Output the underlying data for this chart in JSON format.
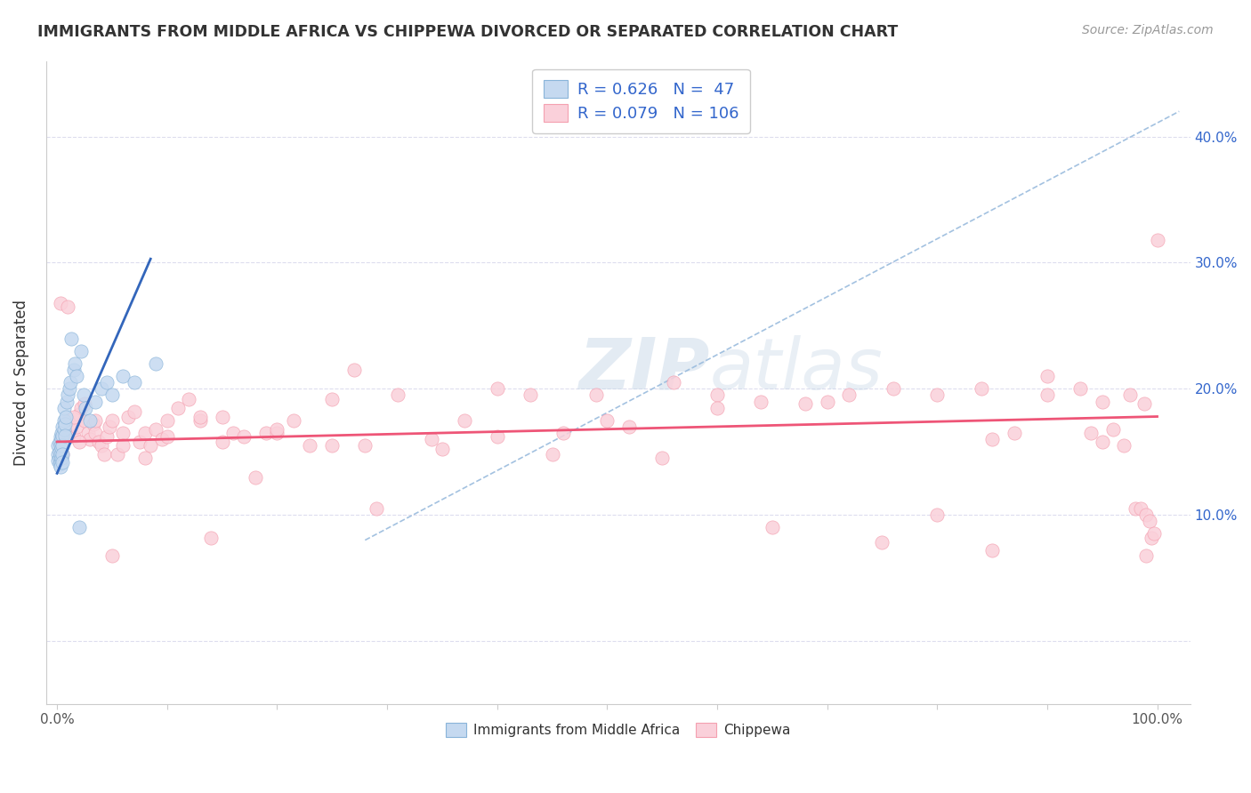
{
  "title": "IMMIGRANTS FROM MIDDLE AFRICA VS CHIPPEWA DIVORCED OR SEPARATED CORRELATION CHART",
  "source": "Source: ZipAtlas.com",
  "ylabel": "Divorced or Separated",
  "legend1_r": "0.626",
  "legend1_n": " 47",
  "legend2_r": "0.079",
  "legend2_n": "106",
  "blue_color": "#89B4D9",
  "pink_color": "#F4A0B0",
  "blue_fill": "#C5D9F0",
  "pink_fill": "#FAD0DA",
  "blue_line_color": "#3366BB",
  "pink_line_color": "#EE5577",
  "dashed_line_color": "#99BBDD",
  "label_color": "#3366CC",
  "text_color": "#333333",
  "grid_color": "#DDDDEE",
  "watermark_color": "#C8D8E8",
  "blue_scatter_x": [
    0.001,
    0.001,
    0.001,
    0.002,
    0.002,
    0.002,
    0.002,
    0.003,
    0.003,
    0.003,
    0.003,
    0.003,
    0.004,
    0.004,
    0.004,
    0.004,
    0.005,
    0.005,
    0.005,
    0.005,
    0.005,
    0.006,
    0.006,
    0.006,
    0.007,
    0.007,
    0.008,
    0.009,
    0.01,
    0.011,
    0.012,
    0.013,
    0.015,
    0.016,
    0.018,
    0.02,
    0.022,
    0.024,
    0.026,
    0.03,
    0.035,
    0.04,
    0.045,
    0.05,
    0.06,
    0.07,
    0.09
  ],
  "blue_scatter_y": [
    0.155,
    0.148,
    0.143,
    0.158,
    0.15,
    0.145,
    0.14,
    0.162,
    0.155,
    0.148,
    0.142,
    0.138,
    0.165,
    0.16,
    0.153,
    0.145,
    0.17,
    0.163,
    0.155,
    0.148,
    0.142,
    0.168,
    0.175,
    0.185,
    0.172,
    0.163,
    0.178,
    0.19,
    0.195,
    0.2,
    0.205,
    0.24,
    0.215,
    0.22,
    0.21,
    0.09,
    0.23,
    0.195,
    0.185,
    0.175,
    0.19,
    0.2,
    0.205,
    0.195,
    0.21,
    0.205,
    0.22
  ],
  "pink_scatter_x": [
    0.003,
    0.005,
    0.008,
    0.01,
    0.012,
    0.015,
    0.018,
    0.02,
    0.022,
    0.025,
    0.028,
    0.03,
    0.033,
    0.035,
    0.038,
    0.04,
    0.043,
    0.045,
    0.048,
    0.05,
    0.055,
    0.06,
    0.065,
    0.07,
    0.075,
    0.08,
    0.085,
    0.09,
    0.095,
    0.1,
    0.11,
    0.12,
    0.13,
    0.14,
    0.15,
    0.16,
    0.17,
    0.18,
    0.19,
    0.2,
    0.215,
    0.23,
    0.25,
    0.27,
    0.29,
    0.31,
    0.34,
    0.37,
    0.4,
    0.43,
    0.46,
    0.49,
    0.52,
    0.56,
    0.6,
    0.64,
    0.68,
    0.72,
    0.76,
    0.8,
    0.84,
    0.87,
    0.9,
    0.93,
    0.95,
    0.97,
    0.98,
    0.985,
    0.99,
    0.995,
    1.0,
    0.01,
    0.015,
    0.025,
    0.035,
    0.06,
    0.1,
    0.13,
    0.2,
    0.28,
    0.4,
    0.5,
    0.6,
    0.7,
    0.8,
    0.85,
    0.9,
    0.94,
    0.96,
    0.975,
    0.988,
    0.993,
    0.997,
    0.02,
    0.05,
    0.08,
    0.15,
    0.25,
    0.35,
    0.45,
    0.55,
    0.65,
    0.75,
    0.85,
    0.95,
    0.99
  ],
  "pink_scatter_y": [
    0.268,
    0.148,
    0.165,
    0.175,
    0.168,
    0.162,
    0.17,
    0.18,
    0.185,
    0.175,
    0.165,
    0.16,
    0.172,
    0.165,
    0.158,
    0.155,
    0.148,
    0.162,
    0.17,
    0.175,
    0.148,
    0.165,
    0.178,
    0.182,
    0.158,
    0.165,
    0.155,
    0.168,
    0.16,
    0.162,
    0.185,
    0.192,
    0.175,
    0.082,
    0.178,
    0.165,
    0.162,
    0.13,
    0.165,
    0.165,
    0.175,
    0.155,
    0.192,
    0.215,
    0.105,
    0.195,
    0.16,
    0.175,
    0.2,
    0.195,
    0.165,
    0.195,
    0.17,
    0.205,
    0.195,
    0.19,
    0.188,
    0.195,
    0.2,
    0.1,
    0.2,
    0.165,
    0.21,
    0.2,
    0.19,
    0.155,
    0.105,
    0.105,
    0.1,
    0.082,
    0.318,
    0.265,
    0.178,
    0.188,
    0.175,
    0.155,
    0.175,
    0.178,
    0.168,
    0.155,
    0.162,
    0.175,
    0.185,
    0.19,
    0.195,
    0.16,
    0.195,
    0.165,
    0.168,
    0.195,
    0.188,
    0.095,
    0.085,
    0.158,
    0.068,
    0.145,
    0.158,
    0.155,
    0.152,
    0.148,
    0.145,
    0.09,
    0.078,
    0.072,
    0.158,
    0.068
  ]
}
